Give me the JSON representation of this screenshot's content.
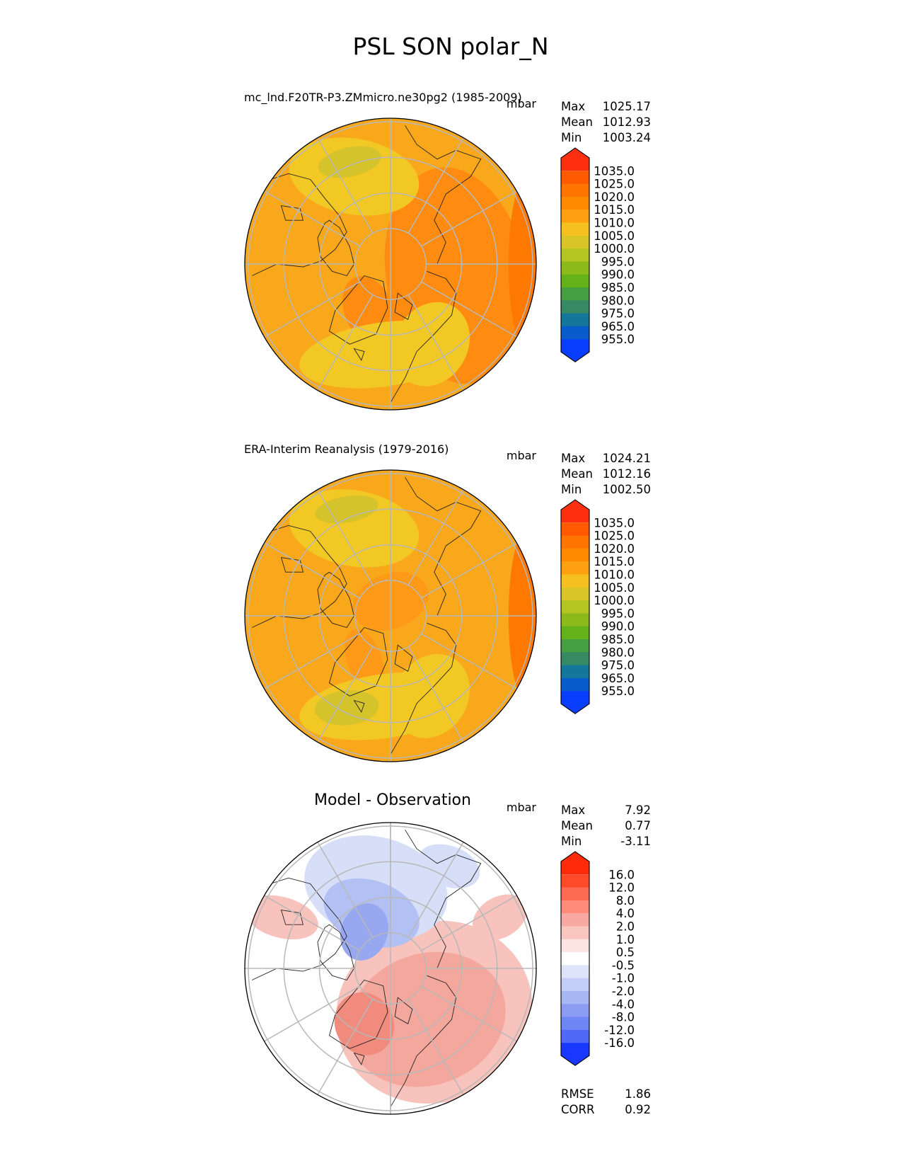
{
  "figure": {
    "title": "PSL SON polar_N"
  },
  "chart_data": [
    {
      "type": "heatmap",
      "projection": "north-polar-stereographic",
      "title": "mc_lnd.F20TR-P3.ZMmicro.ne30pg2 (1985-2009)",
      "units": "mbar",
      "stats": [
        {
          "label": "Max",
          "value": "1025.17"
        },
        {
          "label": "Mean",
          "value": "1012.93"
        },
        {
          "label": "Min",
          "value": "1003.24"
        }
      ],
      "colorbar": {
        "levels": [
          "1035.0",
          "1025.0",
          "1020.0",
          "1015.0",
          "1010.0",
          "1005.0",
          "1000.0",
          "995.0",
          "990.0",
          "985.0",
          "980.0",
          "975.0",
          "965.0",
          "955.0"
        ],
        "colors": [
          "#ff3010",
          "#ff5a00",
          "#ff7500",
          "#ff8a00",
          "#ffa010",
          "#f5c020",
          "#d9c626",
          "#b5c420",
          "#8cba1a",
          "#63b21a",
          "#44a040",
          "#358a64",
          "#14769a",
          "#0a5ccc",
          "#0a3eff"
        ],
        "extend": "both"
      },
      "regions": [
        {
          "name": "base-field",
          "color": "#f9a81c"
        },
        {
          "name": "east-high",
          "color": "#ff8c10"
        },
        {
          "name": "eastern-rim-high",
          "color": "#ff7800"
        },
        {
          "name": "greenland-high",
          "color": "#ff8c10"
        },
        {
          "name": "low-ring-south",
          "color": "#f2c825"
        },
        {
          "name": "low-ring-north",
          "color": "#f2c825"
        },
        {
          "name": "north-atlantic-low",
          "color": "#d5c32c"
        }
      ]
    },
    {
      "type": "heatmap",
      "projection": "north-polar-stereographic",
      "title": "ERA-Interim Reanalysis (1979-2016)",
      "units": "mbar",
      "stats": [
        {
          "label": "Max",
          "value": "1024.21"
        },
        {
          "label": "Mean",
          "value": "1012.16"
        },
        {
          "label": "Min",
          "value": "1002.50"
        }
      ],
      "colorbar": {
        "levels": [
          "1035.0",
          "1025.0",
          "1020.0",
          "1015.0",
          "1010.0",
          "1005.0",
          "1000.0",
          "995.0",
          "990.0",
          "985.0",
          "980.0",
          "975.0",
          "965.0",
          "955.0"
        ],
        "colors": [
          "#ff3010",
          "#ff5a00",
          "#ff7500",
          "#ff8a00",
          "#ffa010",
          "#f5c020",
          "#d9c626",
          "#b5c420",
          "#8cba1a",
          "#63b21a",
          "#44a040",
          "#358a64",
          "#14769a",
          "#0a5ccc",
          "#0a3eff"
        ],
        "extend": "both"
      },
      "regions": [
        {
          "name": "base-field",
          "color": "#f9a81c"
        },
        {
          "name": "eastern-rim-high",
          "color": "#ff7800"
        },
        {
          "name": "arctic-high",
          "color": "#ff9a18"
        },
        {
          "name": "low-ring-south",
          "color": "#f2c825"
        },
        {
          "name": "low-ring-north",
          "color": "#f2c825"
        },
        {
          "name": "aleutian-low",
          "color": "#d5c32c"
        },
        {
          "name": "icelandic-low",
          "color": "#d5c32c"
        }
      ]
    },
    {
      "type": "heatmap",
      "projection": "north-polar-stereographic",
      "title": "Model - Observation",
      "units": "mbar",
      "stats": [
        {
          "label": "Max",
          "value": "7.92"
        },
        {
          "label": "Mean",
          "value": "0.77"
        },
        {
          "label": "Min",
          "value": "-3.11"
        }
      ],
      "extra_stats": [
        {
          "label": "RMSE",
          "value": "1.86"
        },
        {
          "label": "CORR",
          "value": "0.92"
        }
      ],
      "colorbar": {
        "levels": [
          "16.0",
          "12.0",
          "8.0",
          "4.0",
          "2.0",
          "1.0",
          "0.5",
          "-0.5",
          "-1.0",
          "-2.0",
          "-4.0",
          "-8.0",
          "-12.0",
          "-16.0"
        ],
        "colors": [
          "#ff2a0a",
          "#ff4a2a",
          "#ff6a52",
          "#ff8c7a",
          "#f8aaa2",
          "#fac6c0",
          "#fbe4e2",
          "#ffffff",
          "#dde3f8",
          "#c4cdf6",
          "#a8b6f4",
          "#8c9cf2",
          "#6e86f4",
          "#4e6af6",
          "#1838ff"
        ],
        "extend": "both"
      },
      "regions": [
        {
          "name": "base-field",
          "color": "#ffffff"
        },
        {
          "name": "positive-wide",
          "color": "#f7c3bc"
        },
        {
          "name": "positive-medium",
          "color": "#f4a79c"
        },
        {
          "name": "positive-strong",
          "color": "#f08b7d"
        },
        {
          "name": "negative-wide",
          "color": "#d6def8"
        },
        {
          "name": "negative-medium",
          "color": "#b3c0f4"
        },
        {
          "name": "negative-strong",
          "color": "#98a8f0"
        }
      ]
    }
  ]
}
